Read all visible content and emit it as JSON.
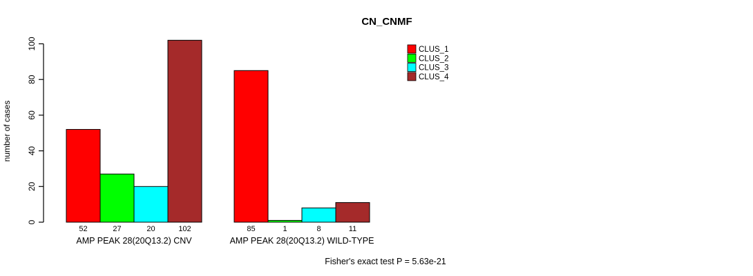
{
  "chart_data": {
    "type": "bar",
    "title": "CN_CNMF",
    "ylabel": "number of cases",
    "xlabel": "",
    "ylim": [
      0,
      102
    ],
    "yticks": [
      0,
      20,
      40,
      60,
      80,
      100
    ],
    "grid": false,
    "legend_position": "top-right",
    "categories": [
      "AMP PEAK 28(20Q13.2) CNV",
      "AMP PEAK 28(20Q13.2) WILD-TYPE"
    ],
    "groups": [
      {
        "label": "AMP PEAK 28(20Q13.2) CNV",
        "values": [
          52,
          27,
          20,
          102
        ]
      },
      {
        "label": "AMP PEAK 28(20Q13.2) WILD-TYPE",
        "values": [
          85,
          1,
          8,
          11
        ]
      }
    ],
    "series": [
      {
        "name": "CLUS_1",
        "color": "#FF0000"
      },
      {
        "name": "CLUS_2",
        "color": "#00FF00"
      },
      {
        "name": "CLUS_3",
        "color": "#00FFFF"
      },
      {
        "name": "CLUS_4",
        "color": "#A52A2A"
      }
    ],
    "bar_border_color": "#000000",
    "annotation": "Fisher's exact test P = 5.63e-21"
  }
}
